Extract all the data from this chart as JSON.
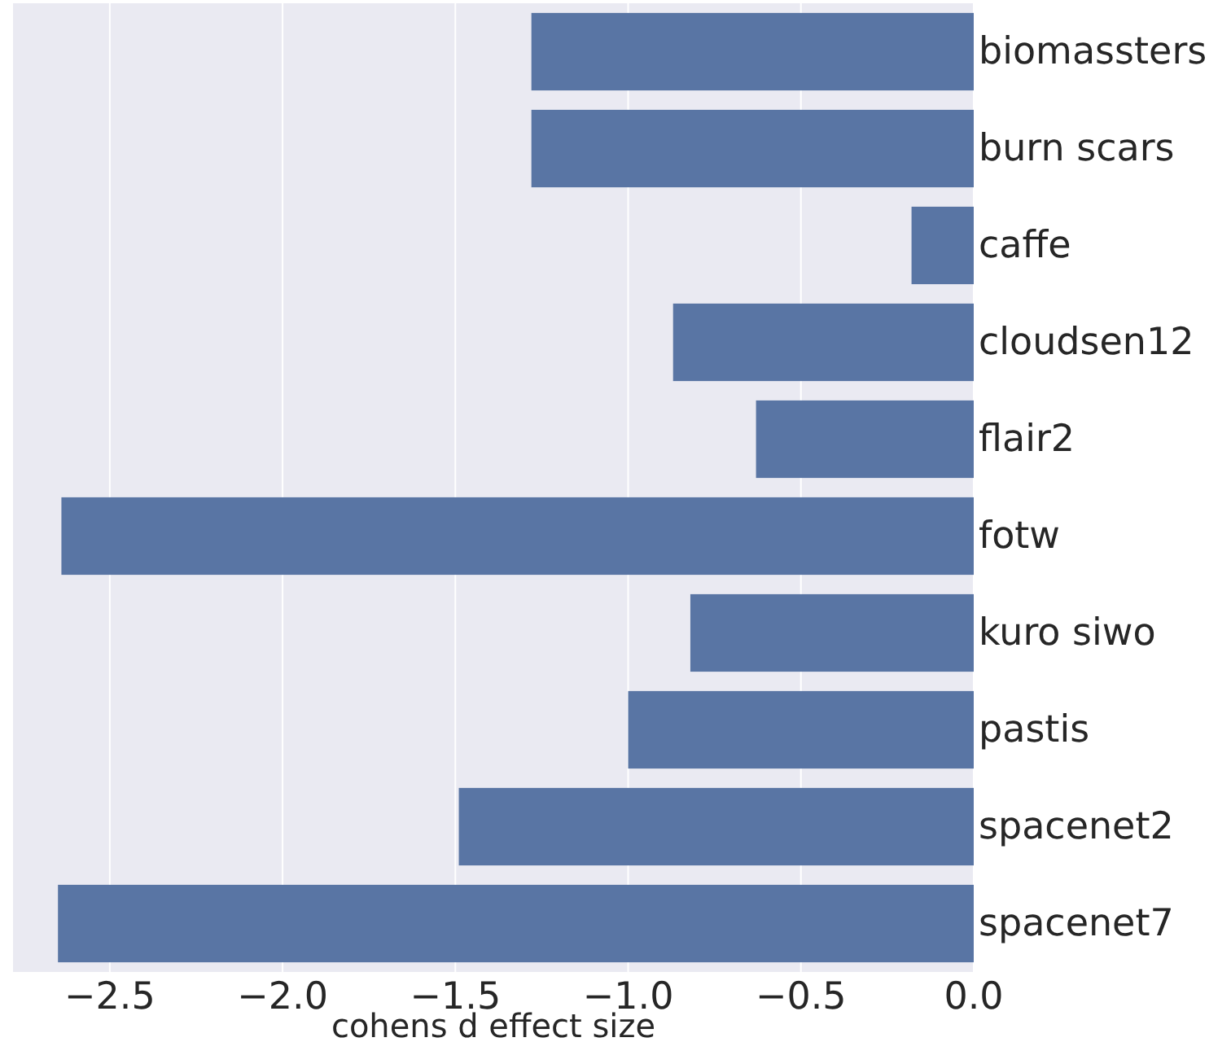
{
  "chart_data": {
    "type": "bar",
    "orientation": "horizontal",
    "xlabel": "cohens d effect size",
    "categories": [
      "biomassters",
      "burn scars",
      "caffe",
      "cloudsen12",
      "flair2",
      "fotw",
      "kuro siwo",
      "pastis",
      "spacenet2",
      "spacenet7"
    ],
    "values": [
      -1.28,
      -1.28,
      -0.18,
      -0.87,
      -0.63,
      -2.64,
      -0.82,
      -1.0,
      -1.49,
      -2.65
    ],
    "color": "#5975a4",
    "xlim": [
      -2.78,
      0
    ],
    "xticks": [
      {
        "value": -2.5,
        "label": "−2.5"
      },
      {
        "value": -2.0,
        "label": "−2.0"
      },
      {
        "value": -1.5,
        "label": "−1.5"
      },
      {
        "value": -1.0,
        "label": "−1.0"
      },
      {
        "value": -0.5,
        "label": "−0.5"
      },
      {
        "value": 0,
        "label": "0.0"
      }
    ],
    "grid": "x"
  }
}
